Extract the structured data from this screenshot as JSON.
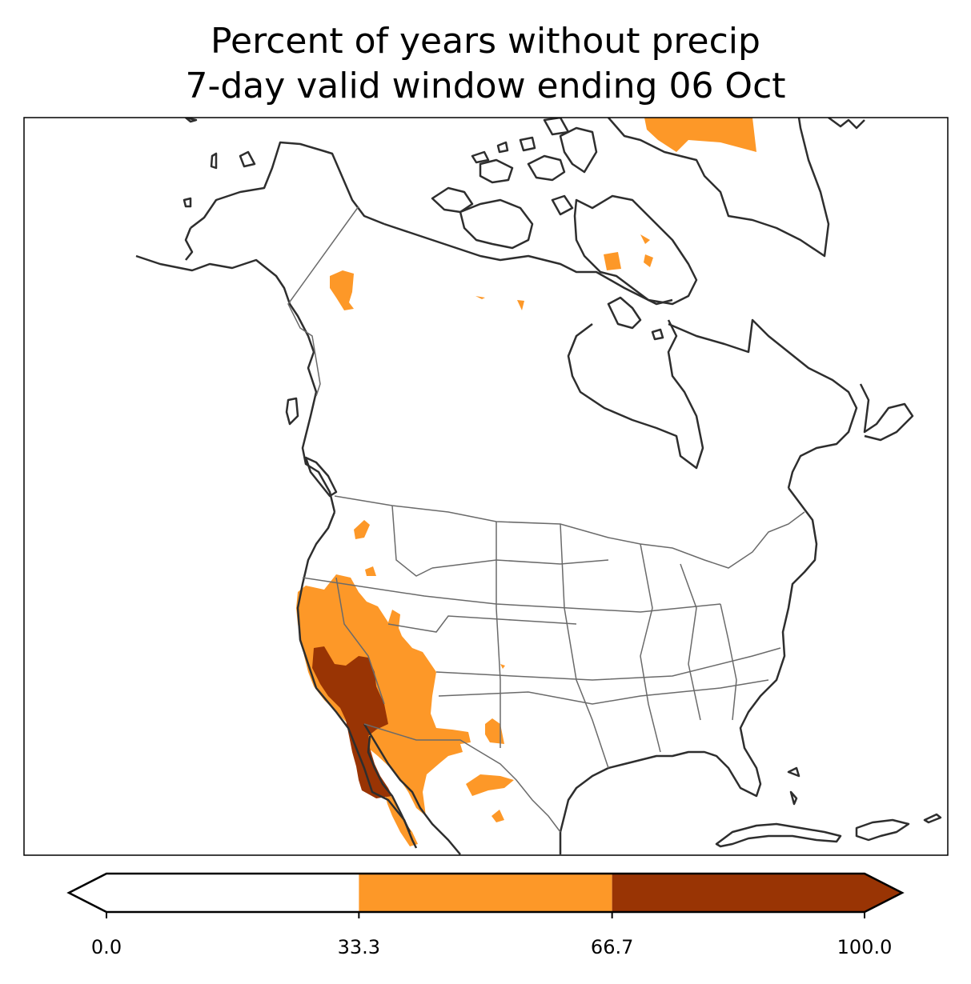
{
  "title": {
    "line1": "Percent of years without precip",
    "line2": "7-day valid window ending 06 Oct"
  },
  "colorbar": {
    "ticks": [
      "0.0",
      "33.3",
      "66.7",
      "100.0"
    ],
    "bins": [
      {
        "range": [
          0.0,
          33.3
        ],
        "color": "#ffffff"
      },
      {
        "range": [
          33.3,
          66.7
        ],
        "color": "#fd9828"
      },
      {
        "range": [
          66.7,
          100.0
        ],
        "color": "#993404"
      }
    ],
    "extend": "both"
  },
  "colors": {
    "medium": "#fd9828",
    "high": "#993404",
    "coast": "#2e2e2e",
    "border": "#6a6a6a"
  }
}
